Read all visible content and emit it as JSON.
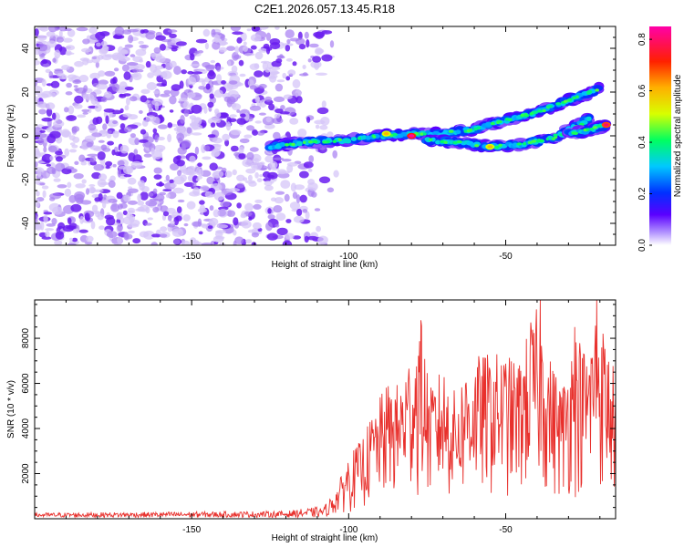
{
  "title": "C2E1.2026.057.13.45.R18",
  "chart_data": [
    {
      "type": "heatmap",
      "xlabel": "Height of straight line (km)",
      "ylabel": "Frequency (Hz)",
      "xlim": [
        -200,
        -15
      ],
      "ylim": [
        -50,
        50
      ],
      "xticks": [
        -150,
        -100,
        -50
      ],
      "xtick_labels": [
        "-150",
        "-100",
        "-50"
      ],
      "yticks": [
        -40,
        -20,
        0,
        20,
        40
      ],
      "ytick_labels": [
        "-40",
        "-20",
        "0",
        "20",
        "40"
      ],
      "colorbar": {
        "label": "Normalized spectral amplitude",
        "range": [
          0,
          0.85
        ],
        "ticks": [
          0.0,
          0.2,
          0.4,
          0.6,
          0.8
        ],
        "tick_labels": [
          "0.0",
          "0.2",
          "0.4",
          "0.6",
          "0.8"
        ]
      },
      "noise_region_x": [
        -200,
        -110
      ],
      "tracks": [
        {
          "name": "main",
          "points": [
            [
              -125,
              -5
            ],
            [
              -115,
              -3
            ],
            [
              -100,
              -2
            ],
            [
              -90,
              0
            ],
            [
              -80,
              1
            ],
            [
              -70,
              1
            ],
            [
              -60,
              3
            ],
            [
              -50,
              7
            ],
            [
              -40,
              11
            ],
            [
              -30,
              16
            ],
            [
              -20,
              22
            ]
          ]
        },
        {
          "name": "lower",
          "points": [
            [
              -75,
              -2
            ],
            [
              -65,
              -3
            ],
            [
              -55,
              -5
            ],
            [
              -45,
              -4
            ],
            [
              -35,
              -1
            ],
            [
              -28,
              4
            ],
            [
              -23,
              8
            ]
          ]
        },
        {
          "name": "right",
          "points": [
            [
              -30,
              1
            ],
            [
              -25,
              2
            ],
            [
              -18,
              5
            ]
          ]
        }
      ],
      "peaks": [
        [
          -80,
          0,
          0.85
        ],
        [
          -18,
          5,
          0.8
        ],
        [
          -88,
          1,
          0.6
        ],
        [
          -55,
          -5,
          0.6
        ]
      ]
    },
    {
      "type": "line",
      "xlabel": "Height of straight line (km)",
      "ylabel": "SNR (10 * v/v)",
      "xlim": [
        -200,
        -15
      ],
      "ylim": [
        0,
        9700
      ],
      "xticks": [
        -150,
        -100,
        -50
      ],
      "xtick_labels": [
        "-150",
        "-100",
        "-50"
      ],
      "yticks": [
        2000,
        4000,
        6000,
        8000
      ],
      "ytick_labels": [
        "2000",
        "4000",
        "6000",
        "8000"
      ],
      "color": "#e8302c",
      "envelope": {
        "x": [
          -200,
          -120,
          -108,
          -104,
          -100,
          -96,
          -92,
          -88,
          -84,
          -80,
          -77,
          -74,
          -70,
          -66,
          -62,
          -58,
          -54,
          -50,
          -46,
          -42,
          -39,
          -36,
          -32,
          -28,
          -24,
          -21,
          -18,
          -15
        ],
        "max": [
          200,
          280,
          500,
          1300,
          2800,
          3500,
          4800,
          6000,
          6000,
          7600,
          8800,
          5800,
          6800,
          5600,
          7000,
          7300,
          7400,
          7300,
          7000,
          8700,
          9700,
          7200,
          6000,
          8500,
          7400,
          9700,
          8000,
          6500
        ]
      },
      "peaks": [
        [
          -77,
          8800
        ],
        [
          -39,
          9700
        ],
        [
          -21,
          9700
        ],
        [
          -28,
          8500
        ],
        [
          -42,
          8700
        ]
      ]
    }
  ]
}
